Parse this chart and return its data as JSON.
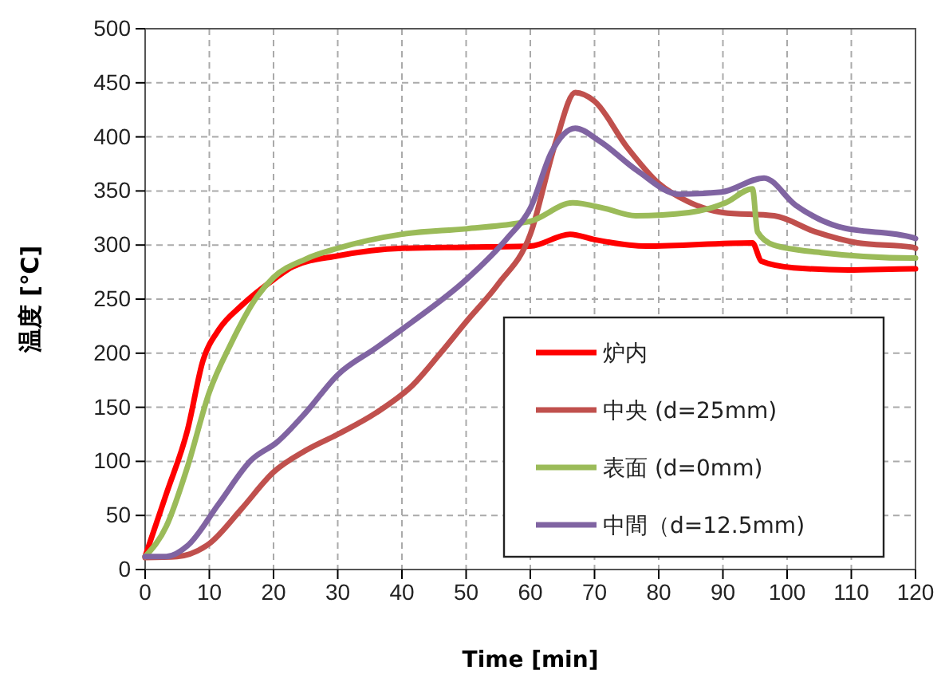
{
  "chart_data": {
    "type": "line",
    "xlabel": "Time [min]",
    "ylabel": "温度 [℃]",
    "xlim": [
      0,
      120
    ],
    "ylim": [
      0,
      500
    ],
    "xticks": [
      0,
      10,
      20,
      30,
      40,
      50,
      60,
      70,
      80,
      90,
      100,
      110,
      120
    ],
    "yticks": [
      0,
      50,
      100,
      150,
      200,
      250,
      300,
      350,
      400,
      450,
      500
    ],
    "grid": true,
    "legend": "bottom right",
    "line_style": "solid",
    "marker": "none",
    "series": [
      {
        "name": "炉内",
        "color": "#ff0000",
        "x": [
          0,
          3.3,
          6.6,
          9,
          11.5,
          15,
          20,
          23,
          30,
          40,
          50,
          60,
          66.2,
          70,
          78,
          94.6,
          96,
          101,
          109.5,
          119.5,
          120
        ],
        "values": [
          12,
          70,
          129,
          193,
          222,
          244,
          268,
          280,
          290,
          297,
          298,
          299,
          310,
          305,
          299,
          302,
          285,
          279,
          277,
          278,
          278
        ]
      },
      {
        "name": "中央 (d=25mm)",
        "color": "#c0504d",
        "x": [
          0,
          5,
          10,
          15,
          20,
          25,
          30,
          36,
          41.6,
          46,
          50,
          55,
          60,
          64,
          67,
          70,
          75,
          80,
          85,
          90,
          98,
          104.5,
          111,
          119.5,
          120
        ],
        "values": [
          11,
          12,
          24,
          56,
          90,
          110,
          125,
          145,
          170,
          200,
          229,
          264,
          310,
          396,
          441,
          433,
          391,
          357,
          339,
          330,
          327,
          312,
          302,
          298,
          297
        ]
      },
      {
        "name": "表面 (d=0mm)",
        "color": "#9bbb59",
        "x": [
          0,
          3.3,
          6.6,
          10,
          13.3,
          17.4,
          20,
          25,
          30,
          40,
          50,
          58,
          60,
          66.6,
          71.5,
          76.4,
          84.7,
          90.4,
          94.6,
          95.4,
          97.9,
          105.3,
          119.5,
          120
        ],
        "values": [
          12,
          40,
          95,
          164,
          208,
          252,
          270,
          287,
          297,
          310,
          315,
          320,
          322,
          339,
          334,
          327,
          330,
          339,
          352,
          312,
          300,
          293,
          288,
          288
        ]
      },
      {
        "name": "中間（d=12.5mm)",
        "color": "#8064a2",
        "x": [
          0,
          3.3,
          6.6,
          11.5,
          16.5,
          20.6,
          25,
          30,
          36,
          41.6,
          50,
          56.5,
          60,
          63.3,
          67,
          70.8,
          76.6,
          83.2,
          89.8,
          96.4,
          101.3,
          108,
          119.5,
          120
        ],
        "values": [
          12,
          12,
          22,
          61,
          101,
          118,
          145,
          180,
          205,
          229,
          268,
          307,
          334,
          386,
          408,
          396,
          369,
          347,
          349,
          362,
          337,
          317,
          307,
          306
        ]
      }
    ]
  }
}
